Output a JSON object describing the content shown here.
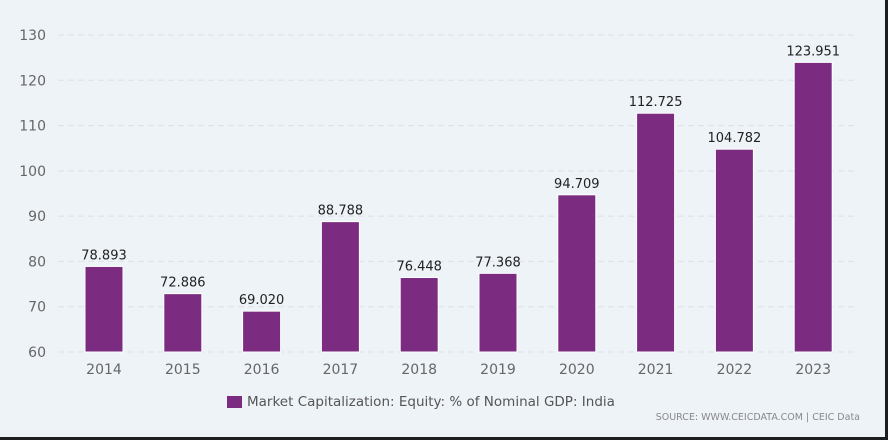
{
  "chart_data": {
    "type": "bar",
    "title": "",
    "xlabel": "",
    "ylabel": "",
    "categories": [
      "2014",
      "2015",
      "2016",
      "2017",
      "2018",
      "2019",
      "2020",
      "2021",
      "2022",
      "2023"
    ],
    "series": [
      {
        "name": "Market Capitalization: Equity: % of Nominal GDP: India",
        "values": [
          78.893,
          72.886,
          69.02,
          88.788,
          76.448,
          77.368,
          94.709,
          112.725,
          104.782,
          123.951
        ],
        "labels": [
          "78.893",
          "72.886",
          "69.020",
          "88.788",
          "76.448",
          "77.368",
          "94.709",
          "112.725",
          "104.782",
          "123.951"
        ],
        "color": "#7b2c80"
      }
    ],
    "ylim": [
      60,
      130
    ],
    "yticks": [
      60,
      70,
      80,
      90,
      100,
      110,
      120,
      130
    ],
    "grid": true,
    "legend": "bottom-center"
  },
  "source": "SOURCE: WWW.CEICDATA.COM | CEIC Data"
}
